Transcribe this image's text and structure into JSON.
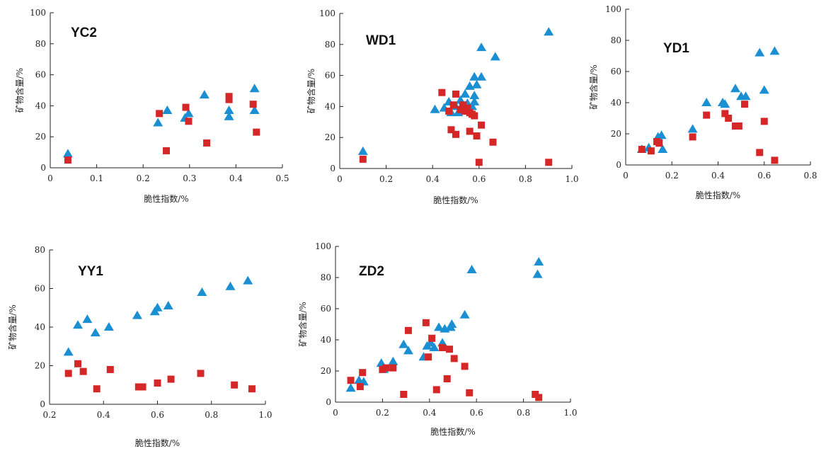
{
  "colors": {
    "triangle": "#1a8fd1",
    "square": "#d62728"
  },
  "chart_data": [
    {
      "type": "scatter",
      "title": "YC2",
      "xlabel": "脆性指数/%",
      "ylabel": "矿物含量/%",
      "xlim": [
        0,
        0.5
      ],
      "ylim": [
        0,
        100
      ],
      "xticks": [
        "0",
        "0.1",
        "0.2",
        "0.3",
        "0.4",
        "0.5"
      ],
      "yticks": [
        "0",
        "20",
        "40",
        "60",
        "80",
        "100"
      ],
      "series": [
        {
          "marker": "triangle",
          "points": [
            [
              0.038,
              9
            ],
            [
              0.232,
              29
            ],
            [
              0.252,
              37
            ],
            [
              0.29,
              32
            ],
            [
              0.298,
              35
            ],
            [
              0.332,
              47
            ],
            [
              0.385,
              37
            ],
            [
              0.385,
              33
            ],
            [
              0.44,
              51
            ],
            [
              0.44,
              37
            ]
          ]
        },
        {
          "marker": "square",
          "points": [
            [
              0.038,
              5
            ],
            [
              0.235,
              35
            ],
            [
              0.25,
              11
            ],
            [
              0.292,
              39
            ],
            [
              0.298,
              30
            ],
            [
              0.337,
              16
            ],
            [
              0.385,
              46
            ],
            [
              0.385,
              44
            ],
            [
              0.437,
              41
            ],
            [
              0.444,
              23
            ]
          ]
        }
      ]
    },
    {
      "type": "scatter",
      "title": "WD1",
      "xlabel": "脆性指数/%",
      "ylabel": "矿物含量/%",
      "xlim": [
        0,
        1.0
      ],
      "ylim": [
        0,
        100
      ],
      "xticks": [
        "0",
        "0.2",
        "0.4",
        "0.6",
        "0.8",
        "1.0"
      ],
      "yticks": [
        "0",
        "20",
        "40",
        "60",
        "80",
        "100"
      ],
      "series": [
        {
          "marker": "triangle",
          "points": [
            [
              0.1,
              11
            ],
            [
              0.41,
              38
            ],
            [
              0.45,
              39
            ],
            [
              0.47,
              43
            ],
            [
              0.48,
              36
            ],
            [
              0.5,
              40
            ],
            [
              0.51,
              36
            ],
            [
              0.52,
              44
            ],
            [
              0.53,
              37
            ],
            [
              0.54,
              48
            ],
            [
              0.55,
              42
            ],
            [
              0.56,
              53
            ],
            [
              0.57,
              40
            ],
            [
              0.58,
              47
            ],
            [
              0.58,
              43
            ],
            [
              0.58,
              59
            ],
            [
              0.59,
              54
            ],
            [
              0.61,
              59
            ],
            [
              0.61,
              78
            ],
            [
              0.67,
              72
            ],
            [
              0.9,
              88
            ]
          ]
        },
        {
          "marker": "square",
          "points": [
            [
              0.1,
              6
            ],
            [
              0.44,
              49
            ],
            [
              0.47,
              37
            ],
            [
              0.48,
              25
            ],
            [
              0.49,
              41
            ],
            [
              0.5,
              48
            ],
            [
              0.5,
              22
            ],
            [
              0.52,
              38
            ],
            [
              0.53,
              41
            ],
            [
              0.54,
              37
            ],
            [
              0.55,
              39
            ],
            [
              0.56,
              36
            ],
            [
              0.56,
              24
            ],
            [
              0.57,
              35
            ],
            [
              0.58,
              34
            ],
            [
              0.59,
              21
            ],
            [
              0.6,
              4
            ],
            [
              0.61,
              28
            ],
            [
              0.66,
              17
            ],
            [
              0.9,
              4
            ]
          ]
        }
      ]
    },
    {
      "type": "scatter",
      "title": "YD1",
      "xlabel": "脆性指数/%",
      "ylabel": "矿物含量/%",
      "xlim": [
        0,
        0.8
      ],
      "ylim": [
        0,
        100
      ],
      "xticks": [
        "0",
        "0.2",
        "0.4",
        "0.6",
        "0.8"
      ],
      "yticks": [
        "0",
        "20",
        "40",
        "60",
        "80",
        "100"
      ],
      "series": [
        {
          "marker": "triangle",
          "points": [
            [
              0.07,
              10
            ],
            [
              0.1,
              11
            ],
            [
              0.14,
              18
            ],
            [
              0.155,
              19
            ],
            [
              0.16,
              10
            ],
            [
              0.29,
              23
            ],
            [
              0.35,
              40
            ],
            [
              0.42,
              40
            ],
            [
              0.43,
              39
            ],
            [
              0.475,
              49
            ],
            [
              0.5,
              44
            ],
            [
              0.52,
              44
            ],
            [
              0.58,
              72
            ],
            [
              0.6,
              48
            ],
            [
              0.645,
              73
            ]
          ]
        },
        {
          "marker": "square",
          "points": [
            [
              0.07,
              10
            ],
            [
              0.11,
              9
            ],
            [
              0.135,
              15
            ],
            [
              0.145,
              14
            ],
            [
              0.29,
              18
            ],
            [
              0.35,
              32
            ],
            [
              0.43,
              33
            ],
            [
              0.445,
              30
            ],
            [
              0.475,
              25
            ],
            [
              0.49,
              25
            ],
            [
              0.515,
              39
            ],
            [
              0.58,
              8
            ],
            [
              0.6,
              28
            ],
            [
              0.645,
              3
            ]
          ]
        }
      ]
    },
    {
      "type": "scatter",
      "title": "YY1",
      "xlabel": "脆性指数/%",
      "ylabel": "矿物含量/%",
      "xlim": [
        0.2,
        1.0
      ],
      "ylim": [
        0,
        80
      ],
      "xticks": [
        "0.2",
        "0.4",
        "0.6",
        "0.8",
        "1.0"
      ],
      "yticks": [
        "0",
        "20",
        "40",
        "60",
        "80"
      ],
      "series": [
        {
          "marker": "triangle",
          "points": [
            [
              0.27,
              27
            ],
            [
              0.305,
              41
            ],
            [
              0.34,
              44
            ],
            [
              0.37,
              37
            ],
            [
              0.42,
              40
            ],
            [
              0.525,
              46
            ],
            [
              0.59,
              48
            ],
            [
              0.6,
              50
            ],
            [
              0.64,
              51
            ],
            [
              0.765,
              58
            ],
            [
              0.87,
              61
            ],
            [
              0.935,
              64
            ]
          ]
        },
        {
          "marker": "square",
          "points": [
            [
              0.27,
              16
            ],
            [
              0.305,
              21
            ],
            [
              0.325,
              17
            ],
            [
              0.375,
              8
            ],
            [
              0.425,
              18
            ],
            [
              0.53,
              9
            ],
            [
              0.545,
              9
            ],
            [
              0.6,
              11
            ],
            [
              0.65,
              13
            ],
            [
              0.76,
              16
            ],
            [
              0.885,
              10
            ],
            [
              0.95,
              8
            ]
          ]
        }
      ]
    },
    {
      "type": "scatter",
      "title": "ZD2",
      "xlabel": "脆性指数/%",
      "ylabel": "矿物含量/%",
      "xlim": [
        0,
        1.0
      ],
      "ylim": [
        0,
        100
      ],
      "xticks": [
        "0",
        "0.2",
        "0.4",
        "0.6",
        "0.8",
        "1.0"
      ],
      "yticks": [
        "0",
        "20",
        "40",
        "60",
        "80",
        "100"
      ],
      "series": [
        {
          "marker": "triangle",
          "points": [
            [
              0.065,
              9
            ],
            [
              0.1,
              14
            ],
            [
              0.12,
              13
            ],
            [
              0.195,
              25
            ],
            [
              0.205,
              21
            ],
            [
              0.245,
              26
            ],
            [
              0.29,
              37
            ],
            [
              0.31,
              33
            ],
            [
              0.375,
              29
            ],
            [
              0.39,
              36
            ],
            [
              0.405,
              38
            ],
            [
              0.42,
              35
            ],
            [
              0.44,
              48
            ],
            [
              0.455,
              38
            ],
            [
              0.465,
              47
            ],
            [
              0.49,
              48
            ],
            [
              0.495,
              50
            ],
            [
              0.55,
              56
            ],
            [
              0.58,
              85
            ],
            [
              0.86,
              82
            ],
            [
              0.865,
              90
            ]
          ]
        },
        {
          "marker": "square",
          "points": [
            [
              0.065,
              14
            ],
            [
              0.105,
              10
            ],
            [
              0.115,
              19
            ],
            [
              0.2,
              21
            ],
            [
              0.215,
              22
            ],
            [
              0.245,
              22
            ],
            [
              0.29,
              5
            ],
            [
              0.31,
              46
            ],
            [
              0.385,
              51
            ],
            [
              0.395,
              29
            ],
            [
              0.41,
              41
            ],
            [
              0.43,
              8
            ],
            [
              0.455,
              35
            ],
            [
              0.475,
              15
            ],
            [
              0.485,
              34
            ],
            [
              0.505,
              28
            ],
            [
              0.55,
              23
            ],
            [
              0.57,
              6
            ],
            [
              0.85,
              5
            ],
            [
              0.865,
              3
            ]
          ]
        }
      ]
    }
  ]
}
